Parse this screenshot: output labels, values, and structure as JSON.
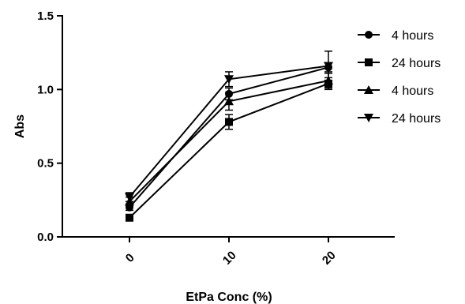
{
  "chart_data": {
    "type": "line",
    "xlabel": "EtPa Conc (%)",
    "ylabel": "Abs",
    "x": [
      0,
      10,
      20
    ],
    "x_tick_labels": [
      "0",
      "10",
      "20"
    ],
    "ylim": [
      0.0,
      1.5
    ],
    "y_ticks": [
      0.0,
      0.5,
      1.0,
      1.5
    ],
    "y_tick_labels": [
      "0.0",
      "0.5",
      "1.0",
      "1.5"
    ],
    "legend_position": "right",
    "grid": false,
    "series": [
      {
        "name": "4 hours",
        "marker": "circle",
        "values": [
          0.2,
          0.97,
          1.15
        ],
        "errors": [
          0.02,
          0.04,
          0.03
        ]
      },
      {
        "name": "24 hours",
        "marker": "square",
        "values": [
          0.13,
          0.78,
          1.04
        ],
        "errors": [
          0.02,
          0.05,
          0.04
        ]
      },
      {
        "name": "4 hours",
        "marker": "triangle-up",
        "values": [
          0.24,
          0.92,
          1.06
        ],
        "errors": [
          0.03,
          0.06,
          0.05
        ]
      },
      {
        "name": "24 hours",
        "marker": "triangle-down",
        "values": [
          0.27,
          1.07,
          1.16
        ],
        "errors": [
          0.03,
          0.05,
          0.1
        ]
      }
    ]
  }
}
